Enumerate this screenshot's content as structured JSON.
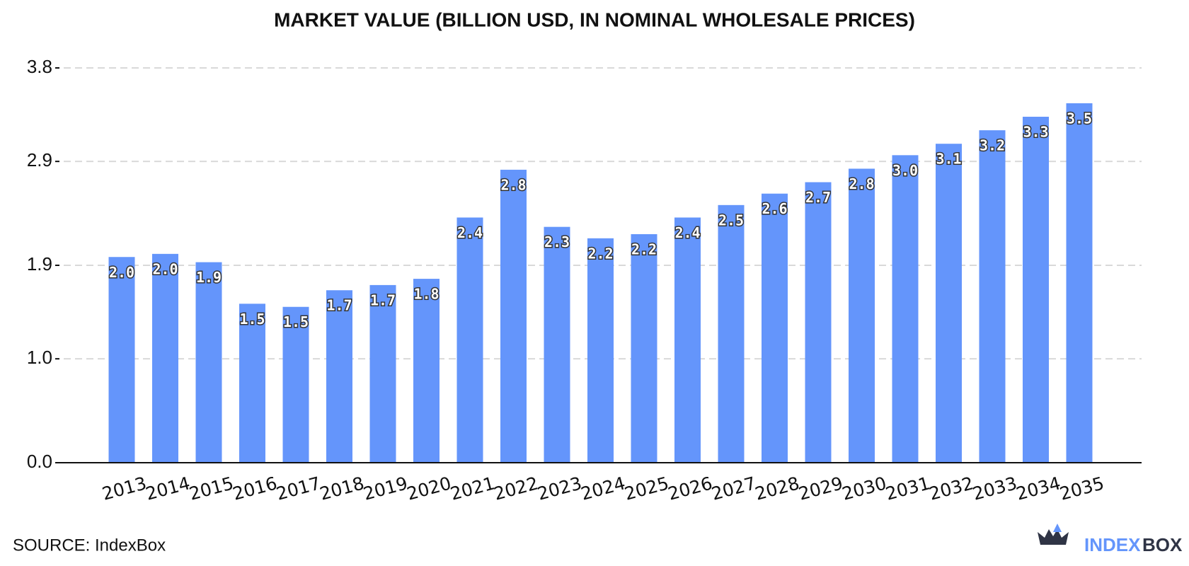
{
  "chart_data": {
    "type": "bar",
    "title": "MARKET VALUE (BILLION USD, IN NOMINAL WHOLESALE PRICES)",
    "categories": [
      "2013",
      "2014",
      "2015",
      "2016",
      "2017",
      "2018",
      "2019",
      "2020",
      "2021",
      "2022",
      "2023",
      "2024",
      "2025",
      "2026",
      "2027",
      "2028",
      "2029",
      "2030",
      "2031",
      "2032",
      "2033",
      "2034",
      "2035"
    ],
    "values": [
      1.98,
      2.01,
      1.93,
      1.53,
      1.5,
      1.66,
      1.71,
      1.77,
      2.36,
      2.82,
      2.27,
      2.16,
      2.2,
      2.36,
      2.48,
      2.59,
      2.7,
      2.83,
      2.96,
      3.07,
      3.2,
      3.33,
      3.46
    ],
    "value_labels": [
      "2.0",
      "2.0",
      "1.9",
      "1.5",
      "1.5",
      "1.7",
      "1.7",
      "1.8",
      "2.4",
      "2.8",
      "2.3",
      "2.2",
      "2.2",
      "2.4",
      "2.5",
      "2.6",
      "2.7",
      "2.8",
      "3.0",
      "3.1",
      "3.2",
      "3.3",
      "3.5"
    ],
    "color": "#6495fb",
    "ylim": [
      0,
      3.8
    ],
    "yticks": [
      {
        "value": 0,
        "label": "0.0"
      },
      {
        "value": 1,
        "label": "1.0"
      },
      1.9,
      2.9,
      3.8
    ],
    "grid": true
  },
  "source": "SOURCE: IndexBox",
  "logo": [
    "INDEX",
    "BOX"
  ]
}
